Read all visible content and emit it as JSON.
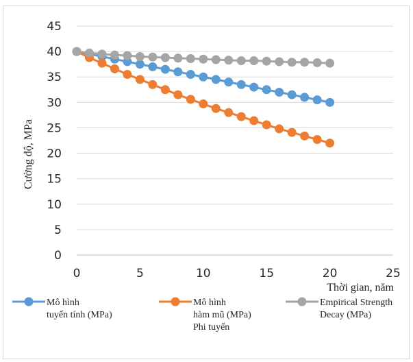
{
  "chart_data": {
    "type": "line",
    "title": "",
    "xlabel": "Thời gian, năm",
    "ylabel": "Cường độ, MPa",
    "xlim": [
      0,
      25
    ],
    "ylim": [
      0,
      45
    ],
    "x_ticks": [
      0,
      5,
      10,
      15,
      20,
      25
    ],
    "y_ticks": [
      0,
      5,
      10,
      15,
      20,
      25,
      30,
      35,
      40,
      45
    ],
    "grid": "horizontal",
    "legend_position": "bottom",
    "x": [
      0,
      1,
      2,
      3,
      4,
      5,
      6,
      7,
      8,
      9,
      10,
      11,
      12,
      13,
      14,
      15,
      16,
      17,
      18,
      19,
      20
    ],
    "series": [
      {
        "name": "Mô hình tuyến tính (MPa)",
        "legend_lines": [
          "Mô hình",
          "tuyến tính (MPa)"
        ],
        "color": "#5b9bd5",
        "values": [
          40,
          39.5,
          39,
          38.5,
          38,
          37.5,
          37,
          36.5,
          36,
          35.5,
          35,
          34.5,
          34,
          33.5,
          33,
          32.5,
          32,
          31.5,
          31,
          30.5,
          30
        ]
      },
      {
        "name": "Mô hình hàm mũ (MPa) Phi tuyến",
        "legend_lines": [
          "Mô hình",
          "hàm mũ (MPa)",
          "Phi tuyến"
        ],
        "color": "#ed7d31",
        "values": [
          40,
          38.8,
          37.7,
          36.6,
          35.5,
          34.5,
          33.5,
          32.5,
          31.5,
          30.6,
          29.7,
          28.8,
          28.0,
          27.2,
          26.4,
          25.6,
          24.8,
          24.1,
          23.4,
          22.7,
          22.0
        ]
      },
      {
        "name": "Empirical Strength Decay (MPa)",
        "legend_lines": [
          "Empirical Strength",
          "Decay (MPa)"
        ],
        "color": "#a5a5a5",
        "values": [
          40,
          39.7,
          39.5,
          39.3,
          39.2,
          39.0,
          38.9,
          38.8,
          38.7,
          38.6,
          38.5,
          38.4,
          38.3,
          38.2,
          38.2,
          38.1,
          38.0,
          37.9,
          37.9,
          37.8,
          37.7
        ]
      }
    ]
  }
}
